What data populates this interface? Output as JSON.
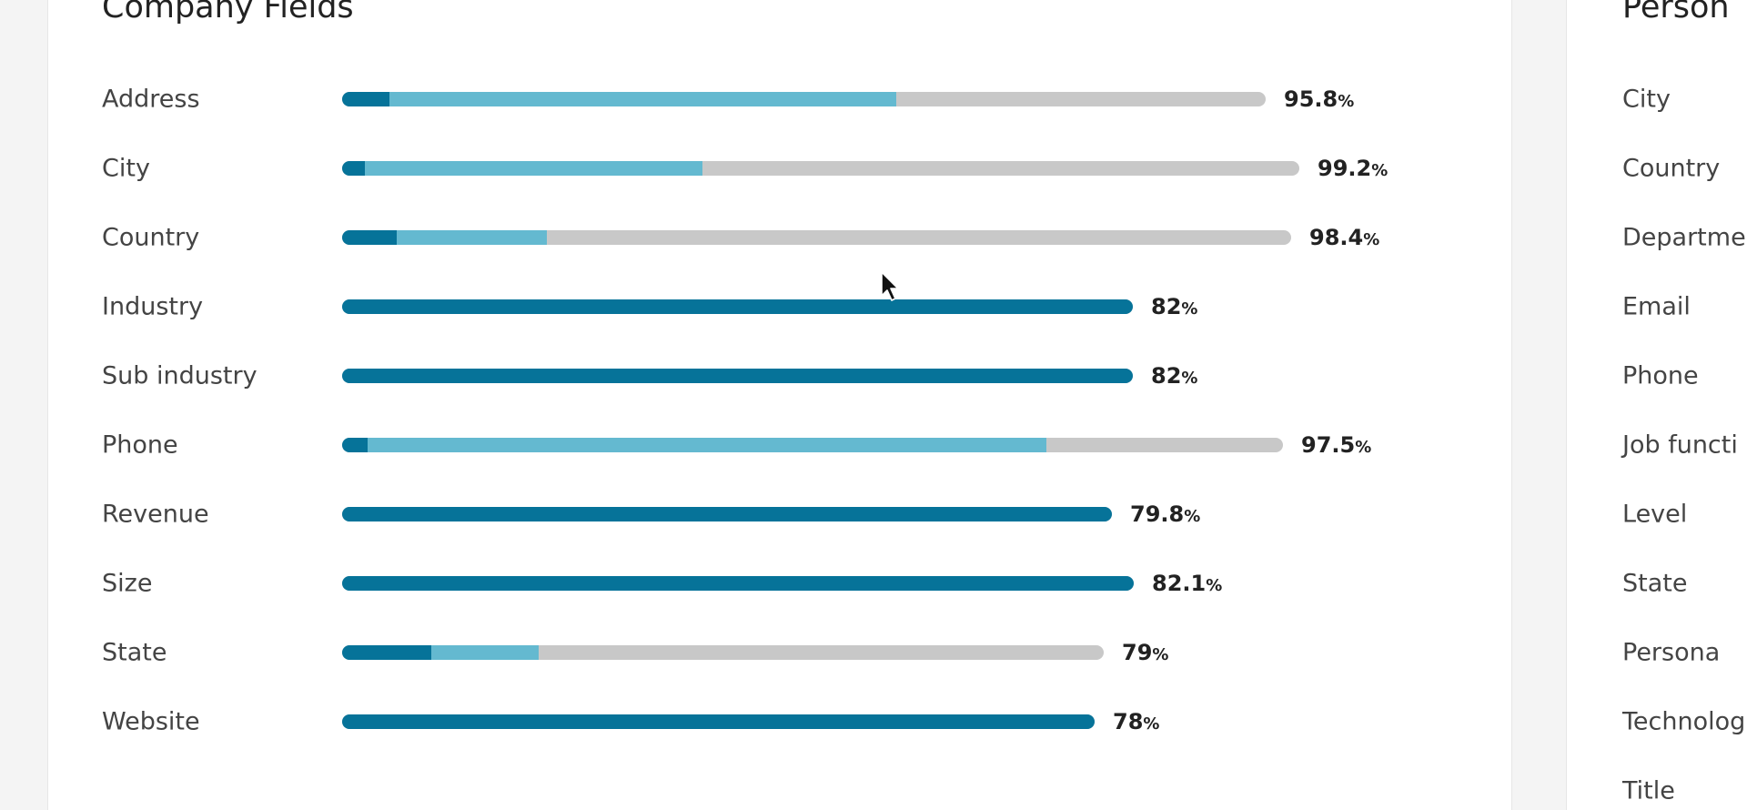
{
  "company": {
    "title": "Company Fields",
    "rows": [
      {
        "label": "Address",
        "value": "95.8",
        "unit": "%",
        "dark_fraction": 0.051,
        "light_fraction": 0.549,
        "total_fraction": 0.958
      },
      {
        "label": "City",
        "value": "99.2",
        "unit": "%",
        "dark_fraction": 0.024,
        "light_fraction": 0.352,
        "total_fraction": 0.992
      },
      {
        "label": "Country",
        "value": "98.4",
        "unit": "%",
        "dark_fraction": 0.058,
        "light_fraction": 0.158,
        "total_fraction": 0.984
      },
      {
        "label": "Industry",
        "value": "82",
        "unit": "%",
        "dark_fraction": 1,
        "light_fraction": 0,
        "total_fraction": 0.82
      },
      {
        "label": "Sub industry",
        "value": "82",
        "unit": "%",
        "dark_fraction": 1,
        "light_fraction": 0,
        "total_fraction": 0.82
      },
      {
        "label": "Phone",
        "value": "97.5",
        "unit": "%",
        "dark_fraction": 0.027,
        "light_fraction": 0.722,
        "total_fraction": 0.975
      },
      {
        "label": "Revenue",
        "value": "79.8",
        "unit": "%",
        "dark_fraction": 1,
        "light_fraction": 0,
        "total_fraction": 0.798
      },
      {
        "label": "Size",
        "value": "82.1",
        "unit": "%",
        "dark_fraction": 1,
        "light_fraction": 0,
        "total_fraction": 0.821
      },
      {
        "label": "State",
        "value": "79",
        "unit": "%",
        "dark_fraction": 0.117,
        "light_fraction": 0.141,
        "total_fraction": 0.79
      },
      {
        "label": "Website",
        "value": "78",
        "unit": "%",
        "dark_fraction": 1,
        "light_fraction": 0,
        "total_fraction": 0.78
      }
    ]
  },
  "person": {
    "title": "Person",
    "labels": [
      "City",
      "Country",
      "Departme",
      "Email",
      "Phone",
      "Job functi",
      "Level",
      "State",
      "Persona",
      "Technolog",
      "Title"
    ]
  },
  "colors": {
    "dark": "#067399",
    "light": "#64b9d0",
    "track": "#c8c8c8"
  },
  "icons": {
    "cursor": "mouse-pointer-icon"
  }
}
